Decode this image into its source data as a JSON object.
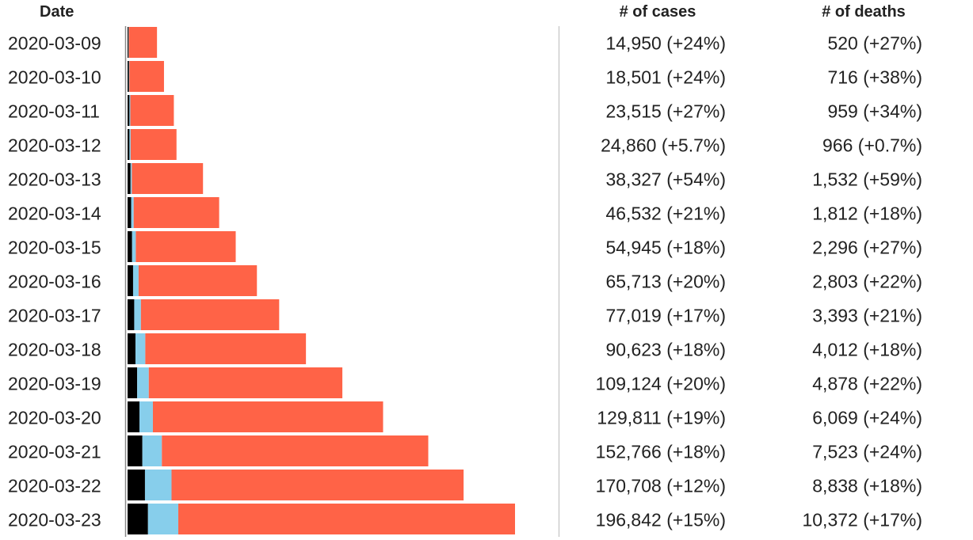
{
  "header": {
    "date_label": "Date",
    "cases_label": "# of cases",
    "deaths_label": "# of deaths"
  },
  "colors": {
    "deaths": "#000000",
    "recovered": "#87ceeb",
    "active": "#ff6347",
    "divider": "#cccccc",
    "axis": "#888888"
  },
  "chart_data": {
    "type": "bar",
    "orientation": "horizontal",
    "stacked": true,
    "categories": [
      "2020-03-09",
      "2020-03-10",
      "2020-03-11",
      "2020-03-12",
      "2020-03-13",
      "2020-03-14",
      "2020-03-15",
      "2020-03-16",
      "2020-03-17",
      "2020-03-18",
      "2020-03-19",
      "2020-03-20",
      "2020-03-21",
      "2020-03-22",
      "2020-03-23"
    ],
    "series": [
      {
        "key": "deaths",
        "values": [
          520,
          716,
          959,
          966,
          1532,
          1812,
          2296,
          2803,
          3393,
          4012,
          4878,
          6069,
          7523,
          8838,
          10372
        ]
      },
      {
        "key": "recovered",
        "values": [
          150,
          210,
          450,
          600,
          650,
          1300,
          1900,
          2800,
          3400,
          5000,
          5900,
          6800,
          9900,
          13500,
          15400
        ]
      },
      {
        "key": "active",
        "values": [
          14280,
          17575,
          22106,
          23294,
          36145,
          43420,
          50749,
          60110,
          70226,
          81611,
          98346,
          116942,
          135343,
          148370,
          171070
        ]
      }
    ],
    "xlim": [
      0,
      200000
    ],
    "rows": [
      {
        "date": "2020-03-09",
        "cases": "14,950 (+24%)",
        "deaths": "520 (+27%)"
      },
      {
        "date": "2020-03-10",
        "cases": "18,501 (+24%)",
        "deaths": "716 (+38%)"
      },
      {
        "date": "2020-03-11",
        "cases": "23,515 (+27%)",
        "deaths": "959 (+34%)"
      },
      {
        "date": "2020-03-12",
        "cases": "24,860 (+5.7%)",
        "deaths": "966 (+0.7%)"
      },
      {
        "date": "2020-03-13",
        "cases": "38,327 (+54%)",
        "deaths": "1,532 (+59%)"
      },
      {
        "date": "2020-03-14",
        "cases": "46,532 (+21%)",
        "deaths": "1,812 (+18%)"
      },
      {
        "date": "2020-03-15",
        "cases": "54,945 (+18%)",
        "deaths": "2,296 (+27%)"
      },
      {
        "date": "2020-03-16",
        "cases": "65,713 (+20%)",
        "deaths": "2,803 (+22%)"
      },
      {
        "date": "2020-03-17",
        "cases": "77,019 (+17%)",
        "deaths": "3,393 (+21%)"
      },
      {
        "date": "2020-03-18",
        "cases": "90,623 (+18%)",
        "deaths": "4,012 (+18%)"
      },
      {
        "date": "2020-03-19",
        "cases": "109,124 (+20%)",
        "deaths": "4,878 (+22%)"
      },
      {
        "date": "2020-03-20",
        "cases": "129,811 (+19%)",
        "deaths": "6,069 (+24%)"
      },
      {
        "date": "2020-03-21",
        "cases": "152,766 (+18%)",
        "deaths": "7,523 (+24%)"
      },
      {
        "date": "2020-03-22",
        "cases": "170,708 (+12%)",
        "deaths": "8,838 (+18%)"
      },
      {
        "date": "2020-03-23",
        "cases": "196,842 (+15%)",
        "deaths": "10,372 (+17%)"
      }
    ]
  }
}
